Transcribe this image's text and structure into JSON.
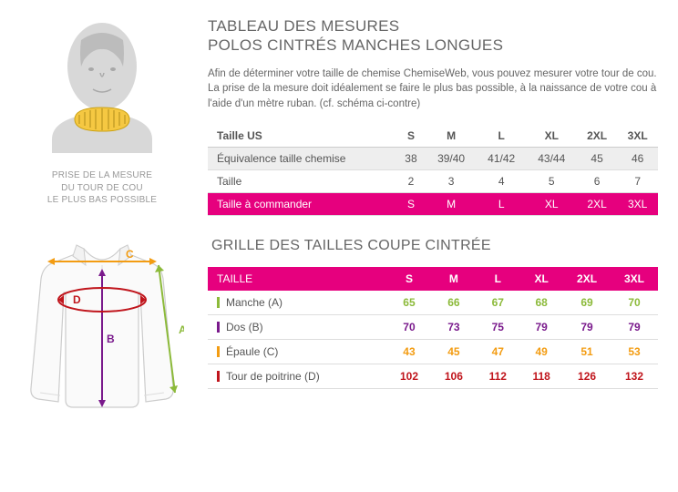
{
  "header": {
    "title_l1": "TABLEAU DES MESURES",
    "title_l2": "POLOS CINTRÉS MANCHES LONGUES",
    "intro": "Afin de déterminer votre taille de chemise ChemiseWeb, vous pouvez mesurer votre tour de cou. La prise de la mesure doit idéalement se faire le plus bas possible, à la naissance de votre cou à l'aide d'un mètre ruban. (cf. schéma ci-contre)"
  },
  "neck_caption": {
    "l1": "PRISE DE LA MESURE",
    "l2": "DU TOUR DE COU",
    "l3": "LE PLUS BAS POSSIBLE"
  },
  "table1": {
    "headers": [
      "Taille US",
      "S",
      "M",
      "L",
      "XL",
      "2XL",
      "3XL"
    ],
    "rows": [
      {
        "label": "Équivalence taille chemise",
        "cells": [
          "38",
          "39/40",
          "41/42",
          "43/44",
          "45",
          "46"
        ],
        "alt": true
      },
      {
        "label": "Taille",
        "cells": [
          "2",
          "3",
          "4",
          "5",
          "6",
          "7"
        ],
        "alt": false
      }
    ],
    "order": {
      "label": "Taille à commander",
      "cells": [
        "S",
        "M",
        "L",
        "XL",
        "2XL",
        "3XL"
      ]
    }
  },
  "section2_title": "GRILLE DES TAILLES  COUPE CINTRÉE",
  "table2": {
    "headers": [
      "TAILLE",
      "S",
      "M",
      "L",
      "XL",
      "2XL",
      "3XL"
    ],
    "rows": [
      {
        "label": "Manche (A)",
        "cells": [
          "65",
          "66",
          "67",
          "68",
          "69",
          "70"
        ],
        "color": "#8cba3a"
      },
      {
        "label": "Dos (B)",
        "cells": [
          "70",
          "73",
          "75",
          "79",
          "79",
          "79"
        ],
        "color": "#7a1a8c"
      },
      {
        "label": "Épaule (C)",
        "cells": [
          "43",
          "45",
          "47",
          "49",
          "51",
          "53"
        ],
        "color": "#f39c12"
      },
      {
        "label": "Tour de poitrine (D)",
        "cells": [
          "102",
          "106",
          "112",
          "118",
          "126",
          "132"
        ],
        "color": "#c0151c"
      }
    ]
  },
  "colors": {
    "magenta": "#e6007e",
    "green": "#8cba3a",
    "purple": "#7a1a8c",
    "orange": "#f39c12",
    "red": "#c0151c",
    "tape": "#f5c842"
  },
  "diagram_labels": {
    "A": "A",
    "B": "B",
    "C": "C",
    "D": "D"
  }
}
